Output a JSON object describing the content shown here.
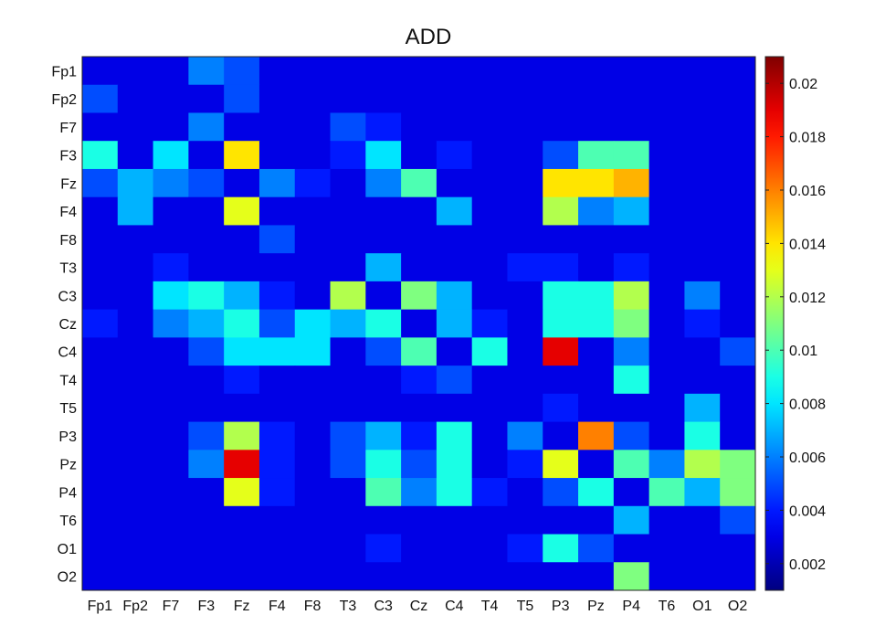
{
  "chart_data": {
    "type": "heatmap",
    "title": "ADD",
    "x_labels": [
      "Fp1",
      "Fp2",
      "F7",
      "F3",
      "Fz",
      "F4",
      "F8",
      "T3",
      "C3",
      "Cz",
      "C4",
      "T4",
      "T5",
      "P3",
      "Pz",
      "P4",
      "T6",
      "O1",
      "O2"
    ],
    "y_labels": [
      "Fp1",
      "Fp2",
      "F7",
      "F3",
      "Fz",
      "F4",
      "F8",
      "T3",
      "C3",
      "Cz",
      "C4",
      "T4",
      "T5",
      "P3",
      "Pz",
      "P4",
      "T6",
      "O1",
      "O2"
    ],
    "colorbar": {
      "colormap": "jet",
      "range": [
        0.001,
        0.021
      ],
      "ticks": [
        "0.002",
        "0.004",
        "0.006",
        "0.008",
        "0.01",
        "0.012",
        "0.014",
        "0.016",
        "0.018",
        "0.02"
      ]
    },
    "values": [
      [
        0.003,
        0.003,
        0.003,
        0.006,
        0.005,
        0.003,
        0.003,
        0.003,
        0.003,
        0.003,
        0.003,
        0.003,
        0.003,
        0.003,
        0.003,
        0.003,
        0.003,
        0.003,
        0.003
      ],
      [
        0.005,
        0.003,
        0.003,
        0.003,
        0.005,
        0.003,
        0.003,
        0.003,
        0.003,
        0.003,
        0.003,
        0.003,
        0.003,
        0.003,
        0.003,
        0.003,
        0.003,
        0.003,
        0.003
      ],
      [
        0.003,
        0.003,
        0.003,
        0.006,
        0.003,
        0.003,
        0.003,
        0.005,
        0.004,
        0.003,
        0.003,
        0.003,
        0.003,
        0.003,
        0.003,
        0.003,
        0.003,
        0.003,
        0.003
      ],
      [
        0.009,
        0.003,
        0.008,
        0.003,
        0.014,
        0.003,
        0.003,
        0.004,
        0.008,
        0.003,
        0.004,
        0.003,
        0.003,
        0.005,
        0.01,
        0.01,
        0.003,
        0.003,
        0.003
      ],
      [
        0.005,
        0.007,
        0.006,
        0.005,
        0.003,
        0.006,
        0.004,
        0.003,
        0.006,
        0.01,
        0.003,
        0.003,
        0.003,
        0.014,
        0.014,
        0.015,
        0.003,
        0.003,
        0.003
      ],
      [
        0.003,
        0.007,
        0.003,
        0.003,
        0.013,
        0.003,
        0.003,
        0.003,
        0.003,
        0.003,
        0.007,
        0.003,
        0.003,
        0.012,
        0.006,
        0.007,
        0.003,
        0.003,
        0.003
      ],
      [
        0.003,
        0.003,
        0.003,
        0.003,
        0.003,
        0.005,
        0.003,
        0.003,
        0.003,
        0.003,
        0.003,
        0.003,
        0.003,
        0.003,
        0.003,
        0.003,
        0.003,
        0.003,
        0.003
      ],
      [
        0.003,
        0.003,
        0.004,
        0.003,
        0.003,
        0.003,
        0.003,
        0.003,
        0.007,
        0.003,
        0.003,
        0.003,
        0.004,
        0.004,
        0.003,
        0.004,
        0.003,
        0.003,
        0.003
      ],
      [
        0.003,
        0.003,
        0.008,
        0.009,
        0.007,
        0.004,
        0.003,
        0.012,
        0.003,
        0.011,
        0.007,
        0.003,
        0.003,
        0.009,
        0.009,
        0.012,
        0.003,
        0.006,
        0.003
      ],
      [
        0.004,
        0.003,
        0.006,
        0.007,
        0.009,
        0.005,
        0.008,
        0.007,
        0.009,
        0.003,
        0.007,
        0.004,
        0.003,
        0.009,
        0.009,
        0.011,
        0.003,
        0.004,
        0.003
      ],
      [
        0.003,
        0.003,
        0.003,
        0.005,
        0.008,
        0.008,
        0.008,
        0.003,
        0.005,
        0.01,
        0.003,
        0.009,
        0.003,
        0.019,
        0.003,
        0.006,
        0.003,
        0.003,
        0.005
      ],
      [
        0.003,
        0.003,
        0.003,
        0.003,
        0.004,
        0.003,
        0.003,
        0.003,
        0.003,
        0.004,
        0.005,
        0.003,
        0.003,
        0.003,
        0.003,
        0.009,
        0.003,
        0.003,
        0.003
      ],
      [
        0.003,
        0.003,
        0.003,
        0.003,
        0.003,
        0.003,
        0.003,
        0.003,
        0.003,
        0.003,
        0.003,
        0.003,
        0.003,
        0.004,
        0.003,
        0.003,
        0.003,
        0.007,
        0.003
      ],
      [
        0.003,
        0.003,
        0.003,
        0.005,
        0.012,
        0.004,
        0.003,
        0.005,
        0.007,
        0.004,
        0.009,
        0.003,
        0.006,
        0.003,
        0.016,
        0.005,
        0.003,
        0.009,
        0.003
      ],
      [
        0.003,
        0.003,
        0.003,
        0.006,
        0.019,
        0.004,
        0.003,
        0.005,
        0.009,
        0.005,
        0.009,
        0.003,
        0.004,
        0.013,
        0.003,
        0.01,
        0.006,
        0.012,
        0.011
      ],
      [
        0.003,
        0.003,
        0.003,
        0.003,
        0.013,
        0.004,
        0.003,
        0.003,
        0.01,
        0.006,
        0.009,
        0.004,
        0.003,
        0.005,
        0.009,
        0.003,
        0.01,
        0.007,
        0.011
      ],
      [
        0.003,
        0.003,
        0.003,
        0.003,
        0.003,
        0.003,
        0.003,
        0.003,
        0.003,
        0.003,
        0.003,
        0.003,
        0.003,
        0.003,
        0.003,
        0.007,
        0.003,
        0.003,
        0.005
      ],
      [
        0.003,
        0.003,
        0.003,
        0.003,
        0.003,
        0.003,
        0.003,
        0.003,
        0.004,
        0.003,
        0.003,
        0.003,
        0.004,
        0.009,
        0.005,
        0.003,
        0.003,
        0.003,
        0.003
      ],
      [
        0.003,
        0.003,
        0.003,
        0.003,
        0.003,
        0.003,
        0.003,
        0.003,
        0.003,
        0.003,
        0.003,
        0.003,
        0.003,
        0.003,
        0.003,
        0.011,
        0.003,
        0.003,
        0.003
      ]
    ]
  }
}
